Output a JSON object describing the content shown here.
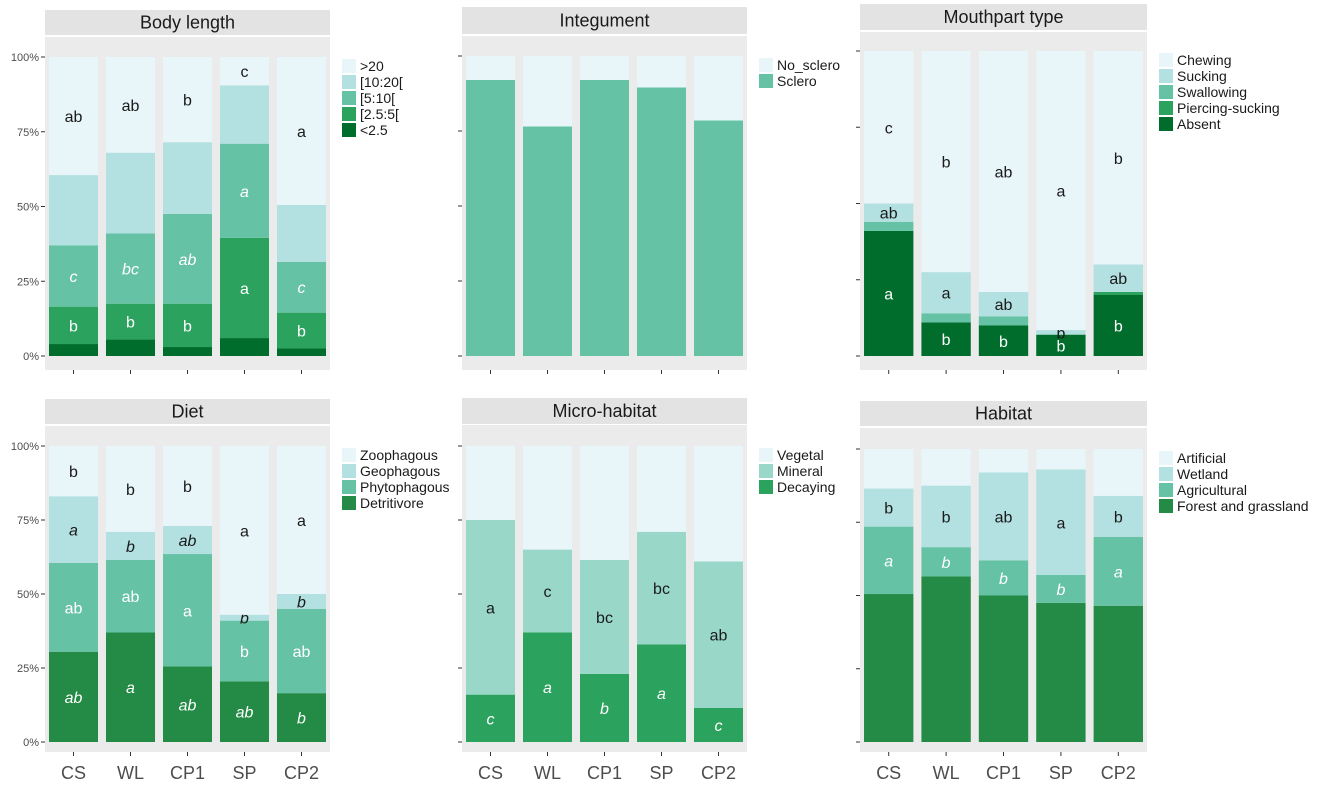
{
  "colors": {
    "panel_bg": "#ebebeb",
    "strip_bg": "#e3e3e3",
    "palette": {
      "lightest": "#e8f5f9",
      "light": "#b3e0e0",
      "mid": "#66c2a4",
      "dark": "#2ca25f",
      "darkest": "#006d2c",
      "mineral": "#99d8c9",
      "forest": "#238b45"
    }
  },
  "chart_data": [
    {
      "type": "bar",
      "title": "Body length",
      "categories": [
        "CS",
        "WL",
        "CP1",
        "SP",
        "CP2"
      ],
      "show_x_labels": false,
      "ylim": [
        0,
        100
      ],
      "y_ticks": [
        "0%",
        "25%",
        "50%",
        "75%",
        "100%"
      ],
      "series": [
        {
          "name": "<2.5",
          "color": "#006d2c",
          "values": [
            4,
            5.5,
            3,
            6,
            2.5
          ],
          "labels": [
            "",
            "",
            "",
            "",
            ""
          ],
          "italic": false,
          "label_color": "#ffffff"
        },
        {
          "name": "[2.5:5[",
          "color": "#2ca25f",
          "values": [
            12.5,
            12,
            14.5,
            33.5,
            12
          ],
          "labels": [
            "b",
            "b",
            "b",
            "a",
            "b"
          ],
          "italic": false,
          "label_color": "#ffffff"
        },
        {
          "name": "[5:10[",
          "color": "#66c2a4",
          "values": [
            20.5,
            23.5,
            30,
            31.5,
            17
          ],
          "labels": [
            "c",
            "bc",
            "ab",
            "a",
            "c"
          ],
          "italic": true,
          "label_color": "#ffffff"
        },
        {
          "name": "[10:20[",
          "color": "#b3e0e0",
          "values": [
            23.5,
            27,
            24,
            19.5,
            19
          ],
          "labels": [
            "",
            "",
            "",
            "",
            ""
          ],
          "italic": false,
          "label_color": "#1a1a1a"
        },
        {
          "name": ">20",
          "color": "#e8f5f9",
          "values": [
            39.5,
            32,
            28.5,
            9.5,
            49.5
          ],
          "labels": [
            "ab",
            "ab",
            "b",
            "c",
            "a"
          ],
          "italic": false,
          "label_color": "#1a1a1a"
        }
      ]
    },
    {
      "type": "bar",
      "title": "Integument",
      "categories": [
        "CS",
        "WL",
        "CP1",
        "SP",
        "CP2"
      ],
      "show_x_labels": false,
      "ylim": [
        0,
        100
      ],
      "y_ticks": [
        "",
        "",
        "",
        "",
        ""
      ],
      "series": [
        {
          "name": "Sclero",
          "color": "#66c2a4",
          "values": [
            92,
            76.5,
            92,
            89.5,
            78.5
          ],
          "labels": [
            "",
            "",
            "",
            "",
            ""
          ],
          "italic": false,
          "label_color": "#ffffff"
        },
        {
          "name": "No_sclero",
          "color": "#e8f5f9",
          "values": [
            8,
            23.5,
            8,
            10.5,
            21.5
          ],
          "labels": [
            "",
            "",
            "",
            "",
            ""
          ],
          "italic": false,
          "label_color": "#1a1a1a"
        }
      ]
    },
    {
      "type": "bar",
      "title": "Mouthpart type",
      "categories": [
        "CS",
        "WL",
        "CP1",
        "SP",
        "CP2"
      ],
      "show_x_labels": false,
      "ylim": [
        0,
        100
      ],
      "y_ticks": [
        "",
        "",
        "",
        "",
        ""
      ],
      "series": [
        {
          "name": "Absent",
          "color": "#006d2c",
          "values": [
            41,
            11,
            10,
            7,
            20
          ],
          "labels": [
            "a",
            "b",
            "b",
            "b",
            "b"
          ],
          "italic": false,
          "label_color": "#ffffff"
        },
        {
          "name": "Piercing-sucking",
          "color": "#2ca25f",
          "values": [
            0,
            0,
            0,
            0,
            1
          ],
          "labels": [
            "",
            "",
            "",
            "",
            ""
          ],
          "italic": false,
          "label_color": "#ffffff"
        },
        {
          "name": "Swallowing",
          "color": "#66c2a4",
          "values": [
            3,
            3,
            3,
            0,
            0
          ],
          "labels": [
            "",
            "",
            "",
            "",
            ""
          ],
          "italic": false,
          "label_color": "#ffffff"
        },
        {
          "name": "Sucking",
          "color": "#b3e0e0",
          "values": [
            6,
            13.5,
            8,
            1.5,
            9
          ],
          "labels": [
            "ab",
            "a",
            "ab",
            "b",
            "ab"
          ],
          "italic": false,
          "label_color": "#1a1a1a"
        },
        {
          "name": "Chewing",
          "color": "#e8f5f9",
          "values": [
            50,
            72.5,
            79,
            91.5,
            70
          ],
          "labels": [
            "c",
            "b",
            "ab",
            "a",
            "b"
          ],
          "italic": false,
          "label_color": "#1a1a1a"
        }
      ]
    },
    {
      "type": "bar",
      "title": "Diet",
      "categories": [
        "CS",
        "WL",
        "CP1",
        "SP",
        "CP2"
      ],
      "show_x_labels": true,
      "ylim": [
        0,
        100
      ],
      "y_ticks": [
        "0%",
        "25%",
        "50%",
        "75%",
        "100%"
      ],
      "series": [
        {
          "name": "Detritivore",
          "color": "#238b45",
          "values": [
            30.5,
            37,
            25.5,
            20.5,
            16.5
          ],
          "labels": [
            "ab",
            "a",
            "ab",
            "ab",
            "b"
          ],
          "italic": true,
          "label_color": "#ffffff"
        },
        {
          "name": "Phytophagous",
          "color": "#66c2a4",
          "values": [
            30,
            24.5,
            38,
            20.5,
            28.5
          ],
          "labels": [
            "ab",
            "ab",
            "a",
            "b",
            "ab"
          ],
          "italic": false,
          "label_color": "#ffffff"
        },
        {
          "name": "Geophagous",
          "color": "#b3e0e0",
          "values": [
            22.5,
            9.5,
            9.5,
            2,
            5
          ],
          "labels": [
            "a",
            "b",
            "ab",
            "b",
            "b"
          ],
          "italic": true,
          "label_color": "#1a1a1a"
        },
        {
          "name": "Zoophagous",
          "color": "#e8f5f9",
          "values": [
            17,
            29,
            27,
            57,
            50
          ],
          "labels": [
            "b",
            "b",
            "b",
            "a",
            "a"
          ],
          "italic": false,
          "label_color": "#1a1a1a"
        }
      ]
    },
    {
      "type": "bar",
      "title": "Micro-habitat",
      "categories": [
        "CS",
        "WL",
        "CP1",
        "SP",
        "CP2"
      ],
      "show_x_labels": true,
      "ylim": [
        0,
        100
      ],
      "y_ticks": [
        "",
        "",
        "",
        "",
        ""
      ],
      "series": [
        {
          "name": "Decaying",
          "color": "#2ca25f",
          "values": [
            16,
            37,
            23,
            33,
            11.5
          ],
          "labels": [
            "c",
            "a",
            "b",
            "a",
            "c"
          ],
          "italic": true,
          "label_color": "#ffffff"
        },
        {
          "name": "Mineral",
          "color": "#99d8c9",
          "values": [
            59,
            28,
            38.5,
            38,
            49.5
          ],
          "labels": [
            "a",
            "c",
            "bc",
            "bc",
            "ab"
          ],
          "italic": false,
          "label_color": "#1a1a1a"
        },
        {
          "name": "Vegetal",
          "color": "#e8f5f9",
          "values": [
            25,
            35,
            38.5,
            29,
            39
          ],
          "labels": [
            "",
            "",
            "",
            "",
            ""
          ],
          "italic": false,
          "label_color": "#1a1a1a"
        }
      ]
    },
    {
      "type": "bar",
      "title": "Habitat",
      "categories": [
        "CS",
        "WL",
        "CP1",
        "SP",
        "CP2"
      ],
      "show_x_labels": true,
      "ylim": [
        0,
        100
      ],
      "y_ticks": [
        "",
        "",
        "",
        "",
        ""
      ],
      "series": [
        {
          "name": "Forest and grassland",
          "color": "#238b45",
          "values": [
            50.5,
            56.5,
            50,
            47.5,
            46.5
          ],
          "labels": [
            "",
            "",
            "",
            "",
            ""
          ],
          "italic": false,
          "label_color": "#ffffff"
        },
        {
          "name": "Agricultural",
          "color": "#66c2a4",
          "values": [
            23,
            10,
            12,
            9.5,
            23.5
          ],
          "labels": [
            "a",
            "b",
            "b",
            "b",
            "a"
          ],
          "italic": true,
          "label_color": "#ffffff"
        },
        {
          "name": "Wetland",
          "color": "#b3e0e0",
          "values": [
            13,
            21,
            30,
            36,
            14
          ],
          "labels": [
            "b",
            "b",
            "ab",
            "a",
            "b"
          ],
          "italic": false,
          "label_color": "#1a1a1a"
        },
        {
          "name": "Artificial",
          "color": "#e8f5f9",
          "values": [
            13.5,
            12.5,
            8,
            7,
            16
          ],
          "labels": [
            "",
            "",
            "",
            "",
            ""
          ],
          "italic": false,
          "label_color": "#1a1a1a"
        }
      ]
    }
  ]
}
